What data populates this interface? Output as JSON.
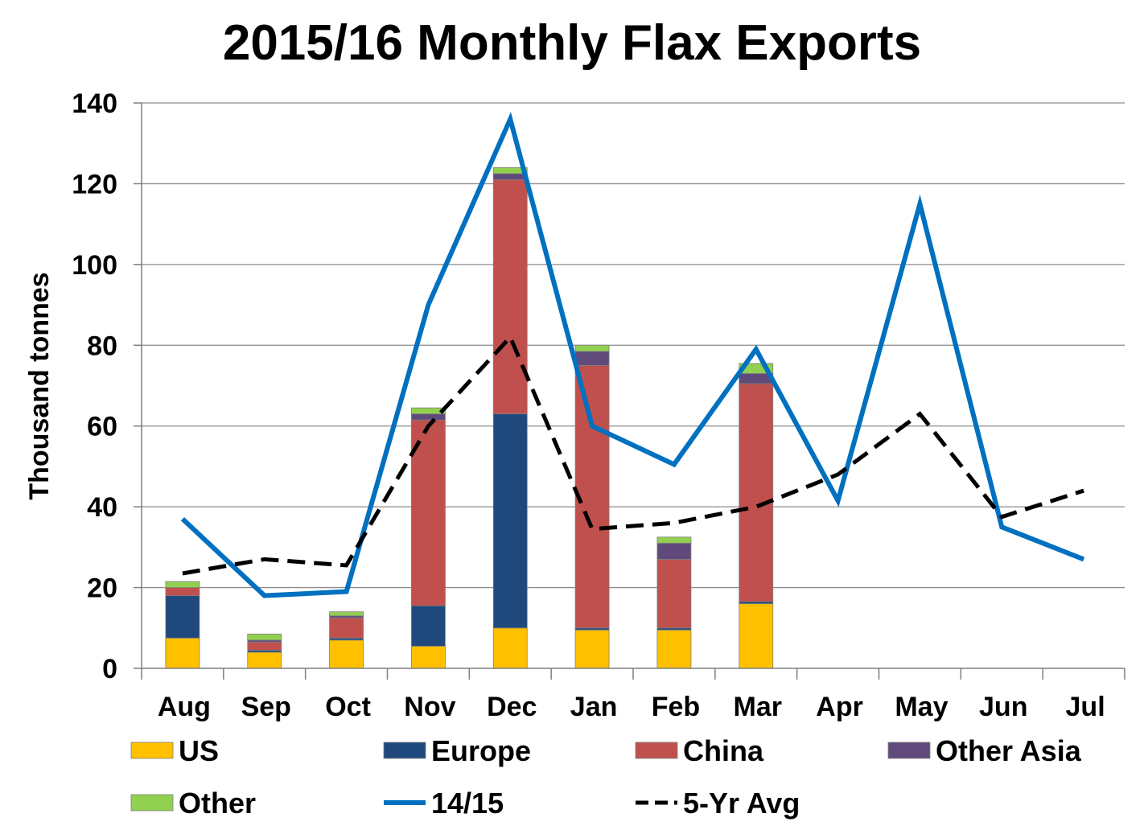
{
  "chart_data": {
    "type": "bar",
    "title": "2015/16 Monthly Flax Exports",
    "ylabel": "Thousand tonnes",
    "xlabel": "",
    "ylim": [
      0,
      140
    ],
    "yticks": [
      0,
      20,
      40,
      60,
      80,
      100,
      120,
      140
    ],
    "grid": true,
    "legend_position": "bottom",
    "categories": [
      "Aug",
      "Sep",
      "Oct",
      "Nov",
      "Dec",
      "Jan",
      "Feb",
      "Mar",
      "Apr",
      "May",
      "Jun",
      "Jul"
    ],
    "stacked_series": [
      {
        "name": "US",
        "color": "#ffc000",
        "values": [
          7.5,
          4,
          7,
          5.5,
          10,
          9.5,
          9.5,
          16,
          null,
          null,
          null,
          null
        ]
      },
      {
        "name": "Europe",
        "color": "#1f497d",
        "values": [
          10.5,
          0.5,
          0.5,
          10,
          53,
          0.5,
          0.5,
          0.5,
          null,
          null,
          null,
          null
        ]
      },
      {
        "name": "China",
        "color": "#c0504d",
        "values": [
          2,
          2,
          5,
          46,
          58,
          65,
          17,
          54,
          null,
          null,
          null,
          null
        ]
      },
      {
        "name": "Other Asia",
        "color": "#604a7b",
        "values": [
          0,
          0.5,
          0.5,
          1.5,
          1.5,
          3.5,
          4,
          2.5,
          null,
          null,
          null,
          null
        ]
      },
      {
        "name": "Other",
        "color": "#92d050",
        "values": [
          1.5,
          1.5,
          1,
          1.5,
          1.5,
          1.5,
          1.5,
          2.5,
          null,
          null,
          null,
          null
        ]
      }
    ],
    "line_series": [
      {
        "name": "14/15",
        "color": "#0070c0",
        "style": "solid",
        "values": [
          37,
          18,
          19,
          90,
          136,
          60,
          50.5,
          79,
          41.5,
          115,
          35,
          27
        ]
      },
      {
        "name": "5-Yr Avg",
        "color": "#000000",
        "style": "dashed",
        "values": [
          23.5,
          27,
          25.5,
          60,
          82,
          34.5,
          36,
          40,
          48,
          63,
          37.5,
          44
        ]
      }
    ]
  }
}
